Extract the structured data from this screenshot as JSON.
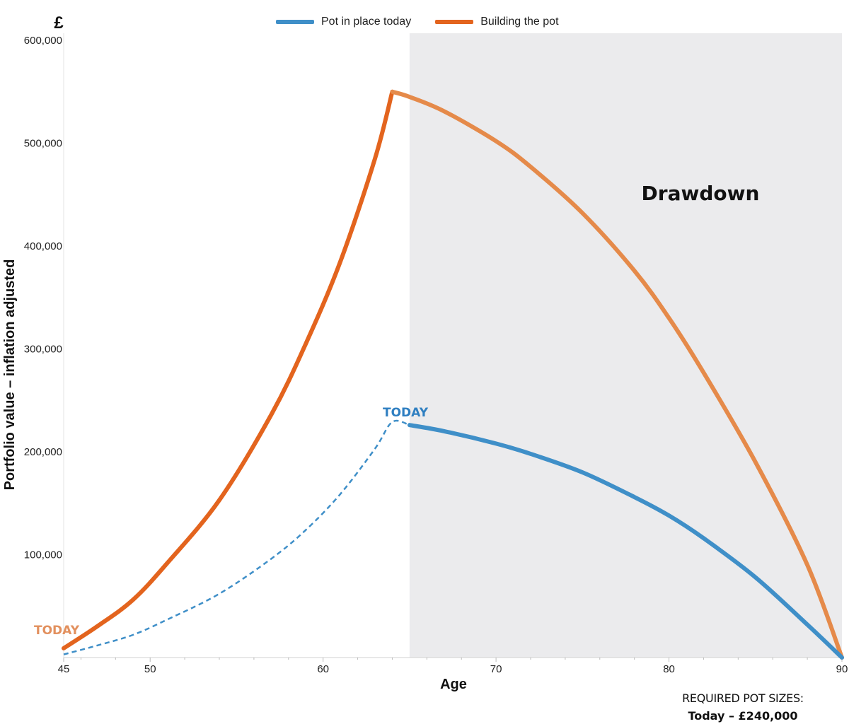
{
  "legend": {
    "pot_in_place_label": "Pot in place today",
    "building_label": "Building the pot"
  },
  "footer": {
    "title": "REQUIRED POT SIZES:",
    "value": "Today – £240,000"
  },
  "colors": {
    "blue": "#3f8fc8",
    "orange": "#e3641e",
    "orange_light": "#e58a4a",
    "shade": "#ebebed",
    "today_orange": "#e2905e",
    "today_blue": "#2f7fc1"
  },
  "chart_data": {
    "type": "line",
    "title": "",
    "currency_symbol": "£",
    "xlabel": "Age",
    "ylabel": "Portfolio value – inflation adjusted",
    "xlim": [
      45,
      90
    ],
    "ylim": [
      0,
      600000
    ],
    "x_ticks": [
      45,
      50,
      60,
      70,
      80,
      90
    ],
    "y_ticks": [
      100000,
      200000,
      300000,
      400000,
      500000,
      600000
    ],
    "y_tick_labels": [
      "100,000",
      "200,000",
      "300,000",
      "400,000",
      "500,000",
      "600,000"
    ],
    "shaded_region": {
      "label": "Drawdown",
      "x_start": 65,
      "x_end": 90
    },
    "annotations": [
      {
        "text": "TODAY",
        "x": 45,
        "y": 9000,
        "series": "Building the pot"
      },
      {
        "text": "TODAY",
        "x": 64,
        "y": 229000,
        "series": "Pot in place today"
      }
    ],
    "series": [
      {
        "name": "Building the pot",
        "style": "solid",
        "x": [
          45,
          47,
          49,
          51,
          54,
          57,
          59,
          61,
          63,
          64,
          65,
          67,
          70,
          72,
          75,
          78,
          80,
          82,
          85,
          88,
          90
        ],
        "y": [
          9000,
          31000,
          56000,
          92000,
          153000,
          236000,
          305000,
          385000,
          485000,
          550000,
          545000,
          531000,
          502000,
          477000,
          432000,
          376000,
          330000,
          277000,
          190000,
          90000,
          0
        ]
      },
      {
        "name": "Pot in place today",
        "style": "dashed",
        "x": [
          45,
          47,
          49,
          51,
          54,
          57,
          59,
          61,
          63,
          64,
          65
        ],
        "y": [
          3000,
          12000,
          22000,
          37000,
          62000,
          96000,
          124000,
          159000,
          203000,
          229000,
          226000
        ]
      },
      {
        "name": "Pot in place today",
        "style": "solid",
        "x": [
          65,
          67,
          70,
          72,
          75,
          78,
          80,
          82,
          85,
          88,
          90
        ],
        "y": [
          226000,
          220000,
          208000,
          198000,
          180000,
          156000,
          138000,
          116000,
          78000,
          32000,
          0
        ]
      }
    ]
  }
}
